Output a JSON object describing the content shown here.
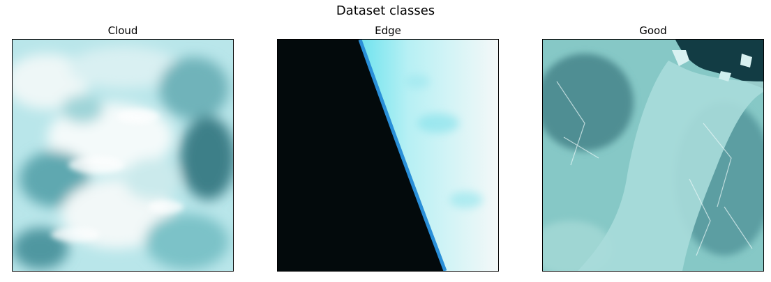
{
  "figure": {
    "title": "Dataset classes",
    "panels": [
      {
        "title": "Cloud"
      },
      {
        "title": "Edge"
      },
      {
        "title": "Good"
      }
    ]
  }
}
